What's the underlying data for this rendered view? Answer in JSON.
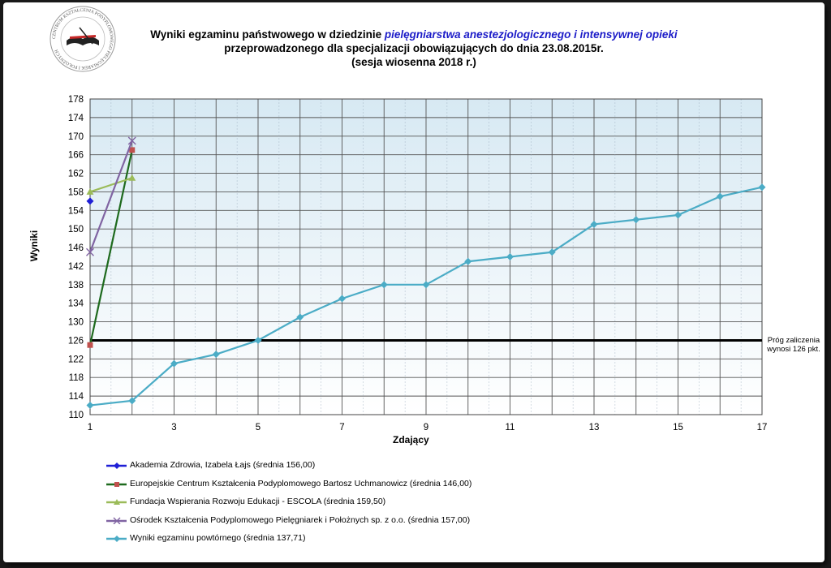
{
  "header": {
    "title_line1_prefix": "Wyniki egzaminu państwowego w dziedzinie ",
    "title_line1_highlight": "pielęgniarstwa anestezjologicznego i intensywnej opieki",
    "title_line2": "przeprowadzonego dla specjalizacji obowiązujących do dnia 23.08.2015r.",
    "title_line3": "(sesja wiosenna 2018 r.)"
  },
  "logo": {
    "text": "CENTRUM KSZTAŁCENIA PODYPLOMOWEGO PIELĘGNIAREK I POŁOŻNYCH"
  },
  "threshold_label": {
    "line1": "Próg zaliczenia",
    "line2": "wynosi 126 pkt."
  },
  "chart_data": {
    "type": "line",
    "xlabel": "Zdający",
    "ylabel": "Wyniki",
    "xlim": [
      1,
      17
    ],
    "ylim": [
      110,
      178
    ],
    "xticks": [
      1,
      3,
      5,
      7,
      9,
      11,
      13,
      15,
      17
    ],
    "yticks": [
      110,
      114,
      118,
      122,
      126,
      130,
      134,
      138,
      142,
      146,
      150,
      154,
      158,
      162,
      166,
      170,
      174,
      178
    ],
    "grid": true,
    "legend_position": "bottom",
    "threshold": 126,
    "series": [
      {
        "name": "Akademia Zdrowia, Izabela Łajs (średnia 156,00)",
        "color": "#1f1fd6",
        "marker": "diamond",
        "x": [
          1
        ],
        "values": [
          156
        ]
      },
      {
        "name": "Europejskie Centrum Kształcenia Podyplomowego Bartosz Uchmanowicz (średnia 146,00)",
        "color": "#1e6a1e",
        "marker": "square",
        "marker_color": "#c0504d",
        "x": [
          1,
          2
        ],
        "values": [
          125,
          167
        ]
      },
      {
        "name": "Fundacja Wspierania Rozwoju Edukacji - ESCOLA (średnia 159,50)",
        "color": "#9bbb59",
        "marker": "triangle",
        "x": [
          1,
          2
        ],
        "values": [
          158,
          161
        ]
      },
      {
        "name": "Ośrodek Kształcenia Podyplomowego Pielęgniarek i Położnych sp. z o.o. (średnia 157,00)",
        "color": "#8064a2",
        "marker": "x",
        "x": [
          1,
          2
        ],
        "values": [
          145,
          169
        ]
      },
      {
        "name": "Wyniki egzaminu powtórnego (średnia 137,71)",
        "color": "#4bacc6",
        "marker": "diamond",
        "x": [
          1,
          2,
          3,
          4,
          5,
          6,
          7,
          8,
          9,
          10,
          11,
          12,
          13,
          14,
          15,
          16,
          17
        ],
        "values": [
          112,
          113,
          121,
          123,
          126,
          131,
          135,
          138,
          138,
          143,
          144,
          145,
          151,
          152,
          153,
          157,
          159
        ]
      }
    ]
  }
}
